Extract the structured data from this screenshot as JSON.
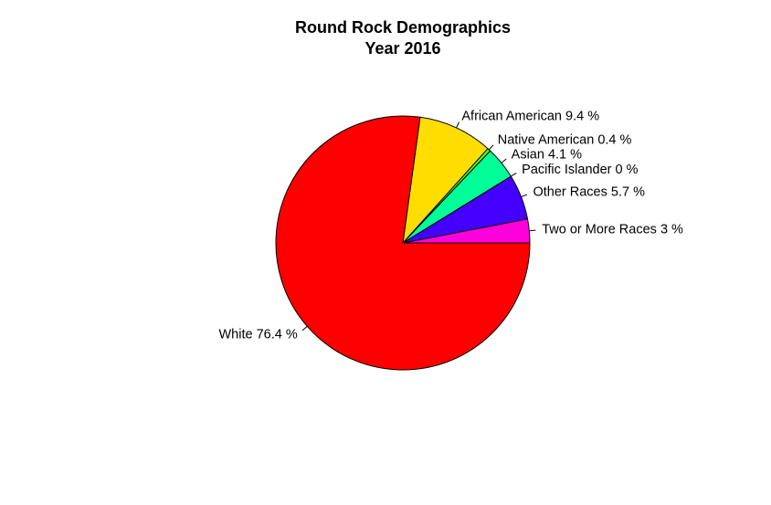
{
  "chart_data": {
    "type": "pie",
    "title": [
      "Round Rock Demographics",
      "Year 2016"
    ],
    "start_angle_deg": 0,
    "direction": "counterclockwise",
    "slices": [
      {
        "category": "Two or More Races",
        "value": 3,
        "label": "Two or More Races 3 %",
        "color": "#ff00dd"
      },
      {
        "category": "Other Races",
        "value": 5.7,
        "label": "Other Races 5.7 %",
        "color": "#4400ff"
      },
      {
        "category": "Pacific Islander",
        "value": 0,
        "label": "Pacific Islander 0 %",
        "color": "#0066ff"
      },
      {
        "category": "Asian",
        "value": 4.1,
        "label": "Asian 4.1 %",
        "color": "#00ff99"
      },
      {
        "category": "Native American",
        "value": 0.4,
        "label": "Native American 0.4 %",
        "color": "#66ff00"
      },
      {
        "category": "African American",
        "value": 9.4,
        "label": "African American 9.4 %",
        "color": "#ffdd00"
      },
      {
        "category": "White",
        "value": 76.4,
        "label": "White 76.4 %",
        "color": "#ff0000"
      }
    ]
  }
}
